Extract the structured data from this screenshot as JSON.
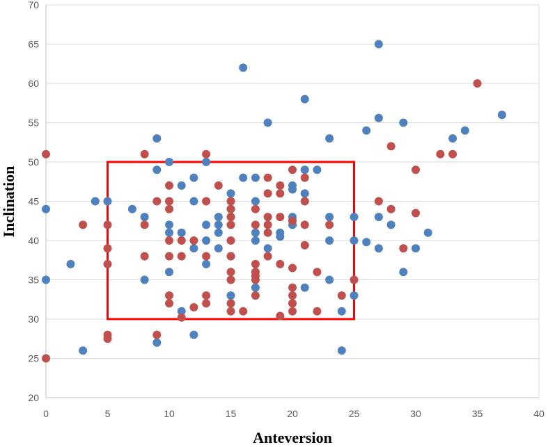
{
  "chart_data": {
    "type": "scatter",
    "title": "",
    "xlabel": "Anteversion",
    "ylabel": "Inclination",
    "xlim": [
      0,
      40
    ],
    "ylim": [
      20,
      70
    ],
    "xticks": [
      0,
      5,
      10,
      15,
      20,
      25,
      30,
      35,
      40
    ],
    "yticks": [
      20,
      25,
      30,
      35,
      40,
      45,
      50,
      55,
      60,
      65,
      70
    ],
    "x_tick_labels": [
      "0",
      "5",
      "10",
      "15",
      "20",
      "25",
      "30",
      "35",
      "40"
    ],
    "y_tick_labels": [
      "20",
      "25",
      "30",
      "35",
      "40",
      "45",
      "50",
      "55",
      "60",
      "65",
      "70"
    ],
    "grid": "horizontal",
    "legend": "none",
    "safe_zone": {
      "x_range": [
        5,
        25
      ],
      "y_range": [
        30,
        50
      ],
      "color": "#ff0000"
    },
    "series": [
      {
        "color": "#4e81bd",
        "points": [
          [
            0,
            44
          ],
          [
            0,
            35
          ],
          [
            2,
            37
          ],
          [
            3,
            26
          ],
          [
            4,
            45
          ],
          [
            5,
            45
          ],
          [
            7,
            44
          ],
          [
            8,
            43
          ],
          [
            8,
            35
          ],
          [
            9,
            53
          ],
          [
            9,
            49
          ],
          [
            9,
            27
          ],
          [
            10,
            50
          ],
          [
            10,
            42
          ],
          [
            10,
            41
          ],
          [
            10,
            36
          ],
          [
            11,
            47
          ],
          [
            11,
            41
          ],
          [
            11,
            31
          ],
          [
            12,
            48
          ],
          [
            12,
            45
          ],
          [
            12,
            39
          ],
          [
            12,
            28
          ],
          [
            13,
            50
          ],
          [
            13,
            42
          ],
          [
            13,
            40
          ],
          [
            13,
            37
          ],
          [
            14,
            43
          ],
          [
            14,
            42
          ],
          [
            14,
            41
          ],
          [
            14,
            39
          ],
          [
            15,
            46
          ],
          [
            15,
            44
          ],
          [
            15,
            38
          ],
          [
            15,
            33
          ],
          [
            16,
            62
          ],
          [
            16,
            48
          ],
          [
            17,
            48
          ],
          [
            17,
            45
          ],
          [
            17,
            41
          ],
          [
            17,
            40
          ],
          [
            17,
            34
          ],
          [
            18,
            55
          ],
          [
            18,
            39
          ],
          [
            19,
            41
          ],
          [
            19,
            40.5
          ],
          [
            20,
            47
          ],
          [
            20,
            46.5
          ],
          [
            20,
            43
          ],
          [
            20,
            42
          ],
          [
            21,
            58
          ],
          [
            21,
            49
          ],
          [
            21,
            46
          ],
          [
            21,
            34
          ],
          [
            22,
            49
          ],
          [
            23,
            53
          ],
          [
            23,
            43
          ],
          [
            23,
            40
          ],
          [
            23,
            35
          ],
          [
            24,
            31
          ],
          [
            24,
            26
          ],
          [
            25,
            43
          ],
          [
            25,
            40
          ],
          [
            25,
            33
          ],
          [
            26,
            54
          ],
          [
            26,
            39.8
          ],
          [
            27,
            65
          ],
          [
            27,
            55.6
          ],
          [
            27,
            43
          ],
          [
            27,
            39
          ],
          [
            28,
            42
          ],
          [
            29,
            55
          ],
          [
            29,
            36
          ],
          [
            30,
            39
          ],
          [
            31,
            41
          ],
          [
            33,
            53
          ],
          [
            34,
            54
          ],
          [
            37,
            56
          ]
        ]
      },
      {
        "color": "#c0504d",
        "points": [
          [
            0,
            51
          ],
          [
            0,
            25
          ],
          [
            3,
            42
          ],
          [
            5,
            42
          ],
          [
            5,
            39
          ],
          [
            5,
            37
          ],
          [
            5,
            28
          ],
          [
            5,
            27.5
          ],
          [
            8,
            51
          ],
          [
            8,
            42
          ],
          [
            8,
            38
          ],
          [
            9,
            45
          ],
          [
            9,
            28
          ],
          [
            10,
            47
          ],
          [
            10,
            45
          ],
          [
            10,
            44
          ],
          [
            10,
            40
          ],
          [
            10,
            38
          ],
          [
            10,
            33
          ],
          [
            10,
            32
          ],
          [
            11,
            40
          ],
          [
            11,
            38
          ],
          [
            11,
            30.2
          ],
          [
            12,
            40
          ],
          [
            12,
            31.5
          ],
          [
            13,
            51
          ],
          [
            13,
            45
          ],
          [
            13,
            38
          ],
          [
            13,
            33
          ],
          [
            13,
            32
          ],
          [
            14,
            47
          ],
          [
            15,
            45
          ],
          [
            15,
            44
          ],
          [
            15,
            43
          ],
          [
            15,
            42
          ],
          [
            15,
            40
          ],
          [
            15,
            38
          ],
          [
            15,
            36
          ],
          [
            15,
            35
          ],
          [
            15,
            32
          ],
          [
            15,
            31
          ],
          [
            16,
            31
          ],
          [
            17,
            44
          ],
          [
            17,
            42
          ],
          [
            17,
            37
          ],
          [
            17,
            36
          ],
          [
            17,
            35.5
          ],
          [
            17,
            35
          ],
          [
            17,
            33
          ],
          [
            18,
            48
          ],
          [
            18,
            46
          ],
          [
            18,
            43
          ],
          [
            18,
            42
          ],
          [
            18,
            41
          ],
          [
            18,
            38
          ],
          [
            19,
            47
          ],
          [
            19,
            46
          ],
          [
            19,
            43
          ],
          [
            19,
            37
          ],
          [
            19,
            30.4
          ],
          [
            20,
            49
          ],
          [
            20,
            42.5
          ],
          [
            20,
            36.5
          ],
          [
            20,
            34
          ],
          [
            20,
            33
          ],
          [
            20,
            32
          ],
          [
            20,
            31
          ],
          [
            21,
            48
          ],
          [
            21,
            45
          ],
          [
            21,
            42
          ],
          [
            21,
            39.4
          ],
          [
            22,
            36
          ],
          [
            22,
            31
          ],
          [
            23,
            42
          ],
          [
            24,
            33
          ],
          [
            25,
            35
          ],
          [
            27,
            45
          ],
          [
            28,
            52
          ],
          [
            28,
            44
          ],
          [
            29,
            39
          ],
          [
            30,
            49
          ],
          [
            30,
            43.5
          ],
          [
            32,
            51
          ],
          [
            33,
            51
          ],
          [
            35,
            60
          ]
        ]
      }
    ]
  }
}
